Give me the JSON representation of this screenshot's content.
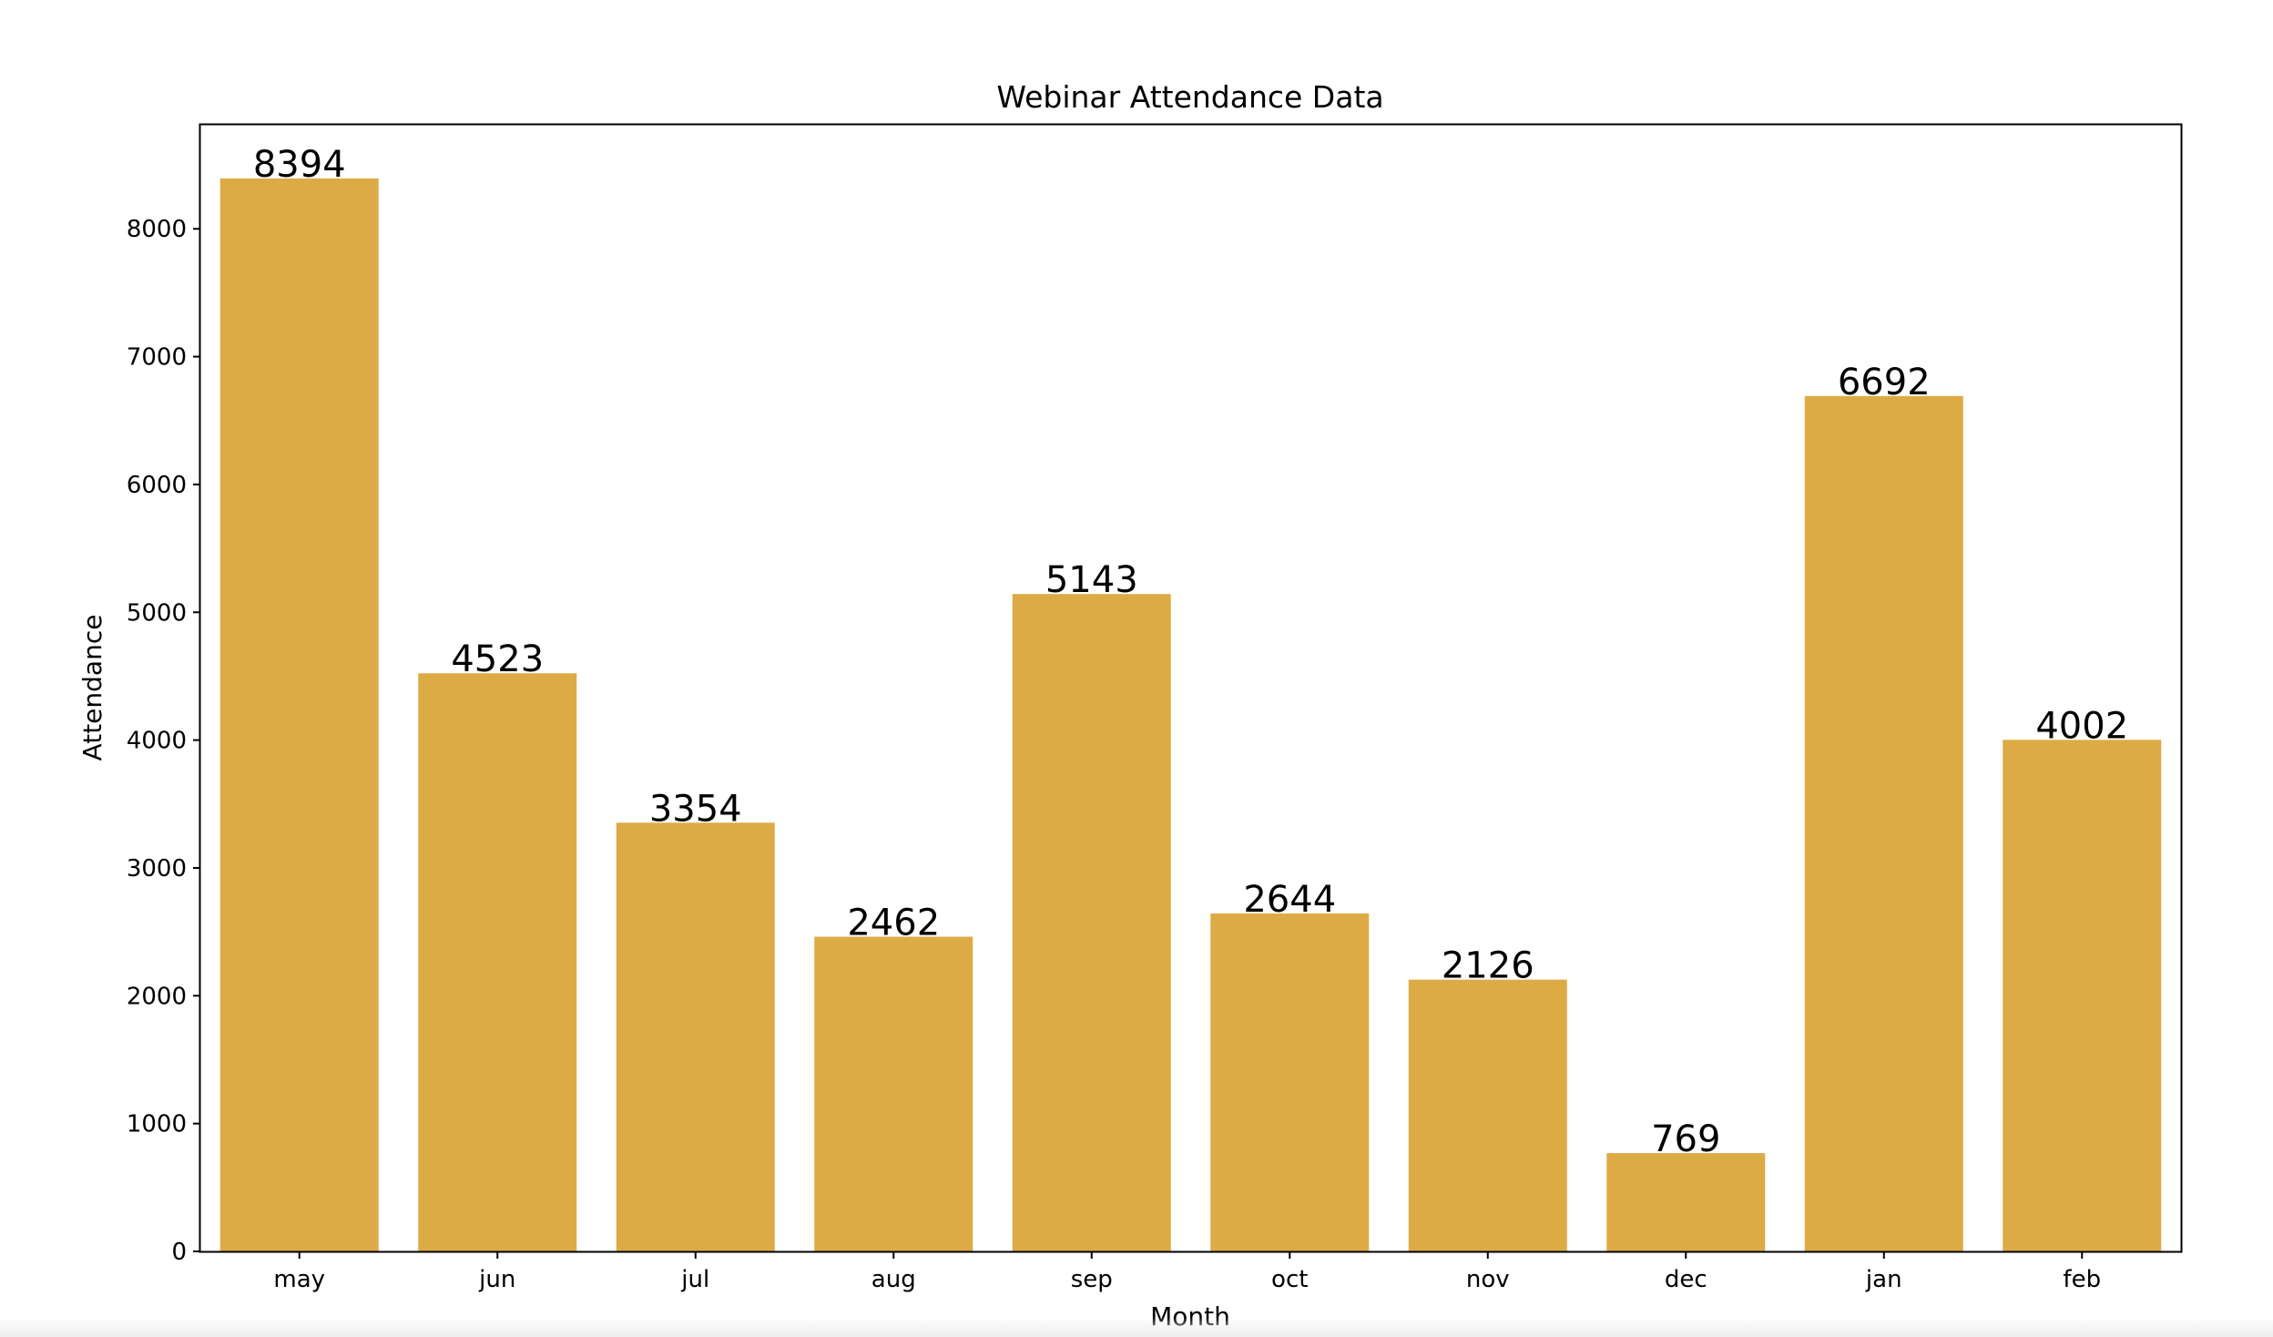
{
  "chart_data": {
    "type": "bar",
    "title": "Webinar Attendance Data",
    "xlabel": "Month",
    "ylabel": "Attendance",
    "categories": [
      "may",
      "jun",
      "jul",
      "aug",
      "sep",
      "oct",
      "nov",
      "dec",
      "jan",
      "feb"
    ],
    "values": [
      8394,
      4523,
      3354,
      2462,
      5143,
      2644,
      2126,
      769,
      6692,
      4002
    ],
    "data_labels": [
      "8394",
      "4523",
      "3354",
      "2462",
      "5143",
      "2644",
      "2126",
      "769",
      "6692",
      "4002"
    ],
    "ylim": [
      0,
      8814
    ],
    "yticks": [
      0,
      1000,
      2000,
      3000,
      4000,
      5000,
      6000,
      7000,
      8000
    ],
    "ytick_labels": [
      "0",
      "1000",
      "2000",
      "3000",
      "4000",
      "5000",
      "6000",
      "7000",
      "8000"
    ],
    "bar_color": "#DDAB46",
    "grid": false,
    "legend": "none"
  }
}
